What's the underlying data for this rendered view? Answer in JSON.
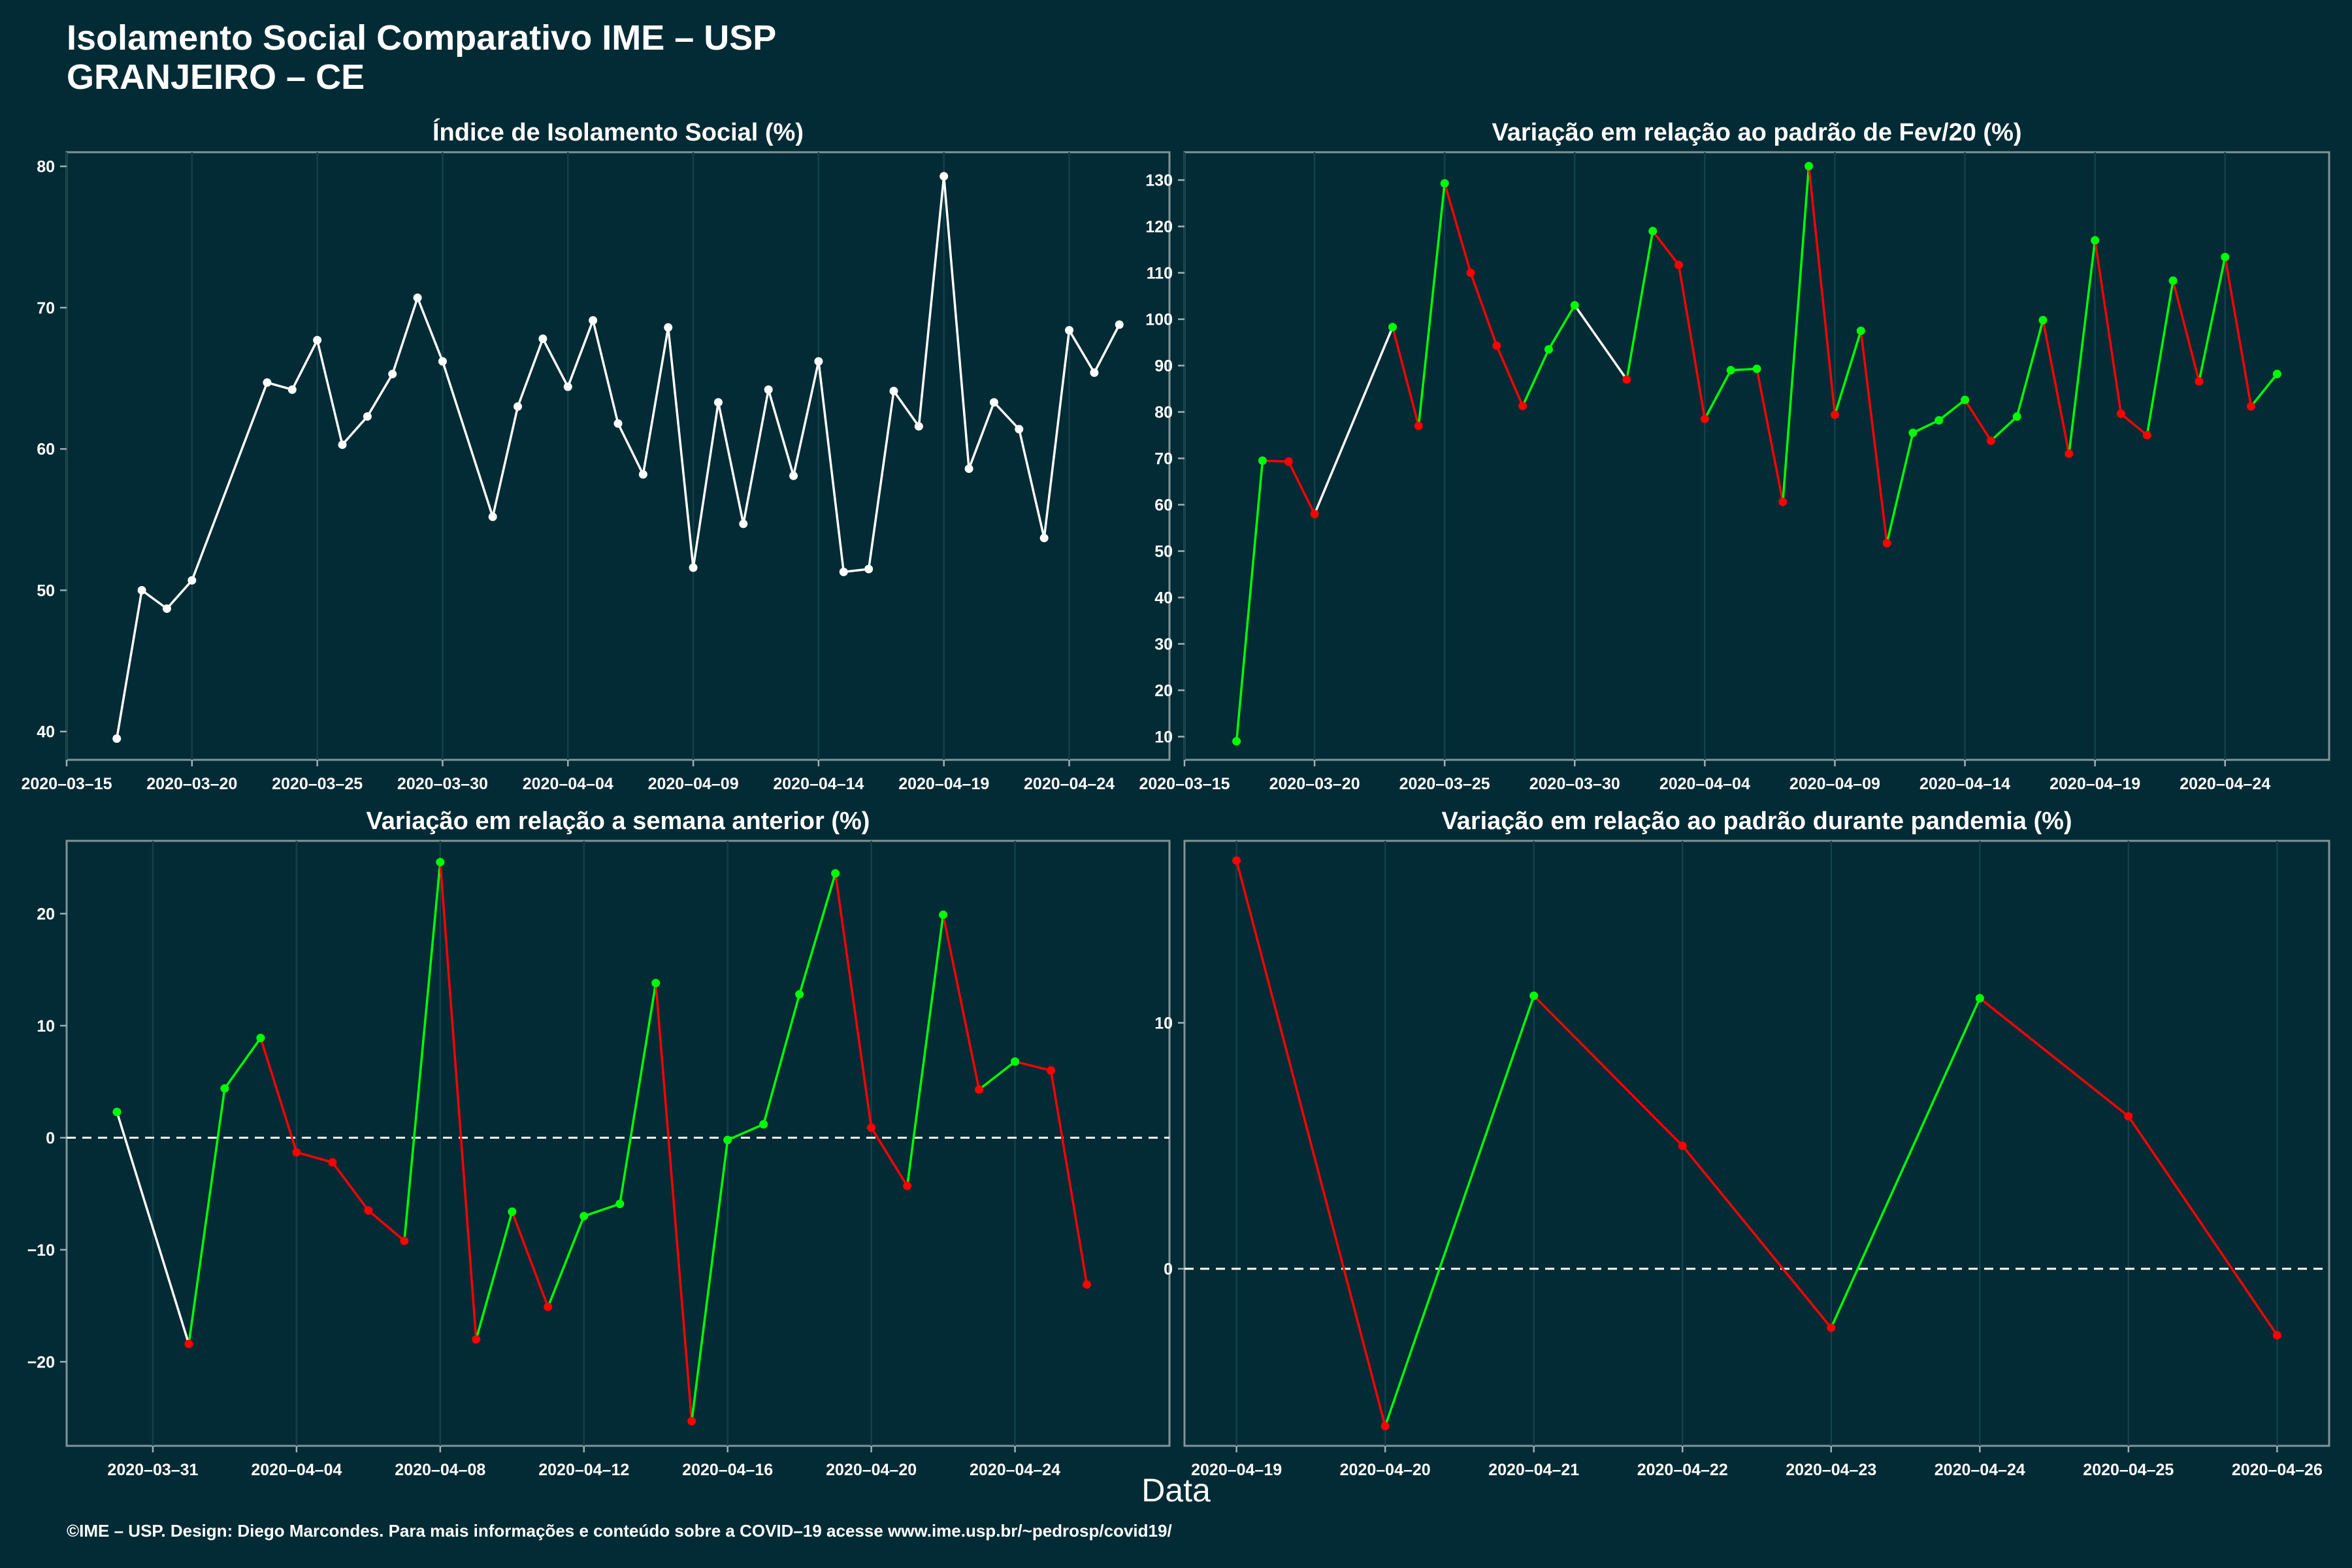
{
  "header": {
    "title": "Isolamento Social Comparativo IME – USP",
    "subtitle": "GRANJEIRO – CE"
  },
  "x_axis_label": "Data",
  "footer": "©IME – USP. Design: Diego Marcondes. Para mais informações e conteúdo sobre a COVID–19 acesse www.ime.usp.br/~pedrosp/covid19/",
  "colors": {
    "background": "#022b35",
    "white": "#ffffff",
    "green": "#00ff00",
    "red": "#ff0000",
    "grid": "#14404a",
    "dashed": "#ffffff"
  },
  "chart_data": [
    {
      "type": "line",
      "title": "Índice de Isolamento Social (%)",
      "x_start": "2020-03-17",
      "xlim": [
        "2020-03-15",
        "2020-04-28"
      ],
      "ylim": [
        38,
        81
      ],
      "yticks": [
        40,
        50,
        60,
        70,
        80
      ],
      "xticks": [
        "2020–03–15",
        "2020–03–20",
        "2020–03–25",
        "2020–03–30",
        "2020–04–04",
        "2020–04–09",
        "2020–04–14",
        "2020–04–19",
        "2020–04–24"
      ],
      "color_mode": "white",
      "values": [
        39.5,
        50.0,
        48.7,
        50.7,
        null,
        null,
        64.7,
        64.2,
        67.7,
        60.3,
        62.3,
        65.3,
        70.7,
        66.2,
        null,
        55.2,
        63.0,
        67.8,
        64.4,
        69.1,
        61.8,
        58.2,
        68.6,
        51.6,
        63.3,
        54.7,
        64.2,
        58.1,
        66.2,
        51.3,
        51.5,
        64.1,
        61.6,
        79.3,
        58.6,
        63.3,
        61.4,
        53.7,
        68.4,
        65.4,
        68.8
      ]
    },
    {
      "type": "line",
      "title": "Variação em relação ao padrão de Fev/20 (%)",
      "x_start": "2020-03-17",
      "xlim": [
        "2020-03-15",
        "2020-04-28"
      ],
      "ylim": [
        5,
        136
      ],
      "yticks": [
        10,
        20,
        30,
        40,
        50,
        60,
        70,
        80,
        90,
        100,
        110,
        120,
        130
      ],
      "xticks": [
        "2020–03–15",
        "2020–03–20",
        "2020–03–25",
        "2020–03–30",
        "2020–04–04",
        "2020–04–09",
        "2020–04–14",
        "2020–04–19",
        "2020–04–24"
      ],
      "color_mode": "direction",
      "values": [
        9,
        69.5,
        69.3,
        58,
        null,
        null,
        98.3,
        77,
        129.3,
        110,
        94.3,
        81.3,
        93.5,
        103,
        null,
        87,
        119,
        111.7,
        78.5,
        89,
        89.3,
        60.6,
        133,
        79.4,
        97.5,
        51.7,
        75.5,
        78.2,
        82.6,
        73.8,
        79,
        99.8,
        71,
        117,
        79.6,
        75,
        108.3,
        86.6,
        113.4,
        81.2,
        88.2
      ]
    },
    {
      "type": "line",
      "title": "Variação em relação a semana anterior (%)",
      "x_start": "2020-03-30",
      "xlim": [
        "2020-03-28.6",
        "2020-04-28.3"
      ],
      "ylim": [
        -27.5,
        26.5
      ],
      "yticks": [
        -20,
        -10,
        0,
        10,
        20
      ],
      "xticks": [
        "2020–03–31",
        "2020–04–04",
        "2020–04–08",
        "2020–04–12",
        "2020–04–16",
        "2020–04–20",
        "2020–04–24"
      ],
      "zero_line": true,
      "color_mode": "direction",
      "values": [
        2.3,
        null,
        -18.4,
        4.4,
        8.9,
        -1.3,
        -2.2,
        -6.5,
        -9.2,
        24.6,
        -18,
        -6.6,
        -15.1,
        -7,
        -5.9,
        13.8,
        -25.3,
        -0.2,
        1.2,
        12.8,
        23.6,
        0.9,
        -4.3,
        19.9,
        4.3,
        6.8,
        6,
        -13.1
      ]
    },
    {
      "type": "line",
      "title": "Variação em relação ao padrão durante pandemia (%)",
      "x_start": "2020-04-19",
      "xlim": [
        "2020-04-18.65",
        "2020-04-26.35"
      ],
      "ylim": [
        -7.2,
        17.4
      ],
      "yticks": [
        0,
        10
      ],
      "xticks": [
        "2020–04–19",
        "2020–04–20",
        "2020–04–21",
        "2020–04–22",
        "2020–04–23",
        "2020–04–24",
        "2020–04–25",
        "2020–04–26"
      ],
      "zero_line": true,
      "color_mode": "direction",
      "values": [
        16.6,
        -6.4,
        11.1,
        5,
        -2.4,
        11,
        6.2,
        -2.7
      ]
    }
  ]
}
